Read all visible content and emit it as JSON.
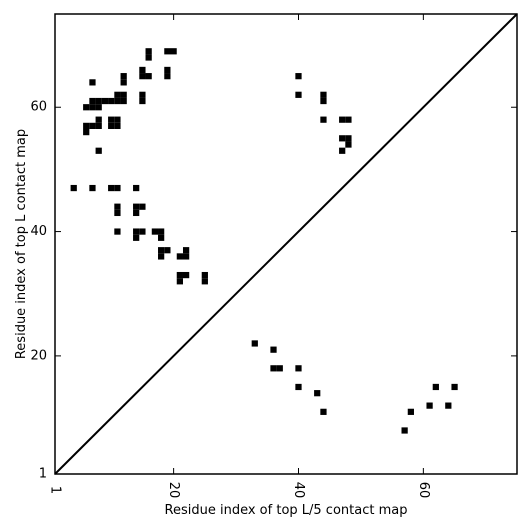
{
  "chart_data": {
    "type": "heatmap",
    "xlabel": "Residue index of top L/5 contact map",
    "ylabel": "Residue index of top L contact map",
    "xlim": [
      1,
      75
    ],
    "ylim": [
      1,
      75
    ],
    "xticks": [
      1,
      20,
      40,
      60
    ],
    "yticks": [
      1,
      20,
      40,
      60
    ],
    "xtick_labels": [
      "1",
      "20",
      "40",
      "60"
    ],
    "ytick_labels": [
      "1",
      "20",
      "40",
      "60"
    ],
    "grid": false,
    "diagonal": true,
    "colors": {
      "contact": "#000000",
      "background": "#ffffff",
      "diagonal": "#000000"
    },
    "upper_contacts": [
      [
        16,
        68
      ],
      [
        16,
        69
      ],
      [
        19,
        69
      ],
      [
        20,
        69
      ],
      [
        7,
        64
      ],
      [
        12,
        64
      ],
      [
        12,
        65
      ],
      [
        15,
        65
      ],
      [
        16,
        65
      ],
      [
        15,
        66
      ],
      [
        19,
        65
      ],
      [
        19,
        66
      ],
      [
        6,
        60
      ],
      [
        7,
        60
      ],
      [
        8,
        60
      ],
      [
        7,
        61
      ],
      [
        8,
        61
      ],
      [
        9,
        61
      ],
      [
        10,
        61
      ],
      [
        11,
        61
      ],
      [
        12,
        61
      ],
      [
        11,
        62
      ],
      [
        12,
        62
      ],
      [
        15,
        61
      ],
      [
        15,
        62
      ],
      [
        6,
        56
      ],
      [
        6,
        57
      ],
      [
        7,
        57
      ],
      [
        8,
        57
      ],
      [
        8,
        58
      ],
      [
        10,
        57
      ],
      [
        10,
        58
      ],
      [
        11,
        57
      ],
      [
        11,
        58
      ],
      [
        8,
        53
      ],
      [
        4,
        47
      ],
      [
        7,
        47
      ],
      [
        10,
        47
      ],
      [
        11,
        47
      ],
      [
        14,
        47
      ],
      [
        11,
        43
      ],
      [
        11,
        44
      ],
      [
        14,
        43
      ],
      [
        14,
        44
      ],
      [
        15,
        44
      ],
      [
        11,
        40
      ],
      [
        14,
        39
      ],
      [
        14,
        40
      ],
      [
        15,
        40
      ],
      [
        17,
        40
      ],
      [
        18,
        39
      ],
      [
        18,
        40
      ],
      [
        18,
        36
      ],
      [
        18,
        37
      ],
      [
        19,
        37
      ],
      [
        21,
        36
      ],
      [
        22,
        36
      ],
      [
        22,
        37
      ],
      [
        21,
        32
      ],
      [
        21,
        33
      ],
      [
        22,
        33
      ],
      [
        25,
        32
      ],
      [
        25,
        33
      ],
      [
        40,
        62
      ],
      [
        40,
        65
      ],
      [
        44,
        61
      ],
      [
        44,
        62
      ],
      [
        44,
        58
      ],
      [
        47,
        58
      ],
      [
        48,
        58
      ],
      [
        47,
        55
      ],
      [
        48,
        54
      ],
      [
        48,
        55
      ],
      [
        47,
        53
      ]
    ],
    "lower_contacts": [
      [
        33,
        22
      ],
      [
        36,
        21
      ],
      [
        36,
        18
      ],
      [
        37,
        18
      ],
      [
        40,
        18
      ],
      [
        40,
        15
      ],
      [
        43,
        14
      ],
      [
        44,
        11
      ],
      [
        57,
        8
      ],
      [
        58,
        11
      ],
      [
        61,
        12
      ],
      [
        62,
        15
      ],
      [
        64,
        12
      ],
      [
        65,
        15
      ]
    ]
  }
}
